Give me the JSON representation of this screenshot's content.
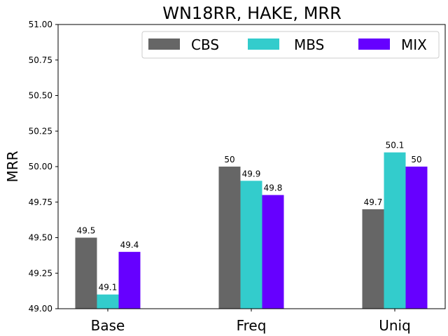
{
  "chart_data": {
    "type": "bar",
    "title": "WN18RR, HAKE, MRR",
    "xlabel": "",
    "ylabel": "MRR",
    "categories": [
      "Base",
      "Freq",
      "Uniq"
    ],
    "series": [
      {
        "name": "CBS",
        "color": "#666666",
        "values": [
          49.5,
          50.0,
          49.7
        ],
        "labels": [
          "49.5",
          "50",
          "49.7"
        ]
      },
      {
        "name": "MBS",
        "color": "#33CCCC",
        "values": [
          49.1,
          49.9,
          50.1
        ],
        "labels": [
          "49.1",
          "49.9",
          "50.1"
        ]
      },
      {
        "name": "MIX",
        "color": "#6600FF",
        "values": [
          49.4,
          49.8,
          50.0
        ],
        "labels": [
          "49.4",
          "49.8",
          "50"
        ]
      }
    ],
    "ylim": [
      49.0,
      51.0
    ],
    "yticks": [
      49.0,
      49.25,
      49.5,
      49.75,
      50.0,
      50.25,
      50.5,
      50.75,
      51.0
    ],
    "ytick_labels": [
      "49.00",
      "49.25",
      "49.50",
      "49.75",
      "50.00",
      "50.25",
      "50.50",
      "50.75",
      "51.00"
    ],
    "grid": false,
    "legend": "top-right"
  }
}
